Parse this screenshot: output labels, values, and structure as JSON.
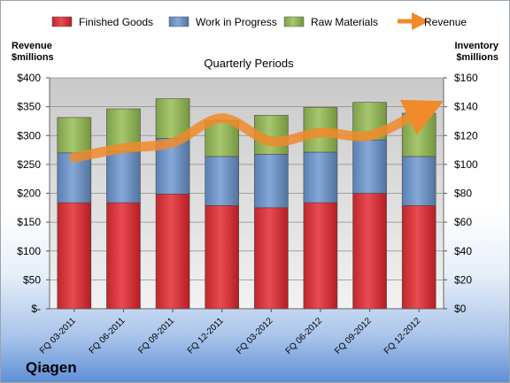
{
  "company": "Qiagen",
  "chart_data": {
    "type": "bar",
    "stacked": true,
    "subtitle": "Quarterly Periods",
    "ylabel_left": [
      "Revenue",
      "$millions"
    ],
    "ylabel_right": [
      "Inventory",
      "$millions"
    ],
    "categories": [
      "FQ 03-2011",
      "FQ 06-2011",
      "FQ 09-2011",
      "FQ 12-2011",
      "FQ 03-2012",
      "FQ 06-2012",
      "FQ 09-2012",
      "FQ 12-2012"
    ],
    "series": [
      {
        "name": "Finished Goods",
        "axis": "right",
        "color": "#d9363e",
        "values": [
          73.5,
          73.5,
          79.5,
          71.5,
          70,
          73.5,
          80,
          71.5
        ]
      },
      {
        "name": "Work in Progress",
        "axis": "right",
        "color": "#6d93c8",
        "values": [
          34.5,
          35.5,
          38.5,
          34,
          37,
          35,
          37,
          34
        ]
      },
      {
        "name": "Raw Materials",
        "axis": "right",
        "color": "#93b65b",
        "values": [
          24.5,
          29.5,
          27.5,
          25,
          27,
          31,
          26,
          30
        ]
      },
      {
        "name": "Revenue",
        "axis": "left",
        "type": "line",
        "color": "#f08a2a",
        "values": [
          262,
          278,
          288,
          330,
          290,
          305,
          300,
          340
        ]
      }
    ],
    "y_left": {
      "min": 0,
      "max": 400,
      "step": 50,
      "ticks": [
        "$-",
        "$50",
        "$100",
        "$150",
        "$200",
        "$250",
        "$300",
        "$350",
        "$400"
      ]
    },
    "y_right": {
      "min": 0,
      "max": 160,
      "step": 20,
      "ticks": [
        "$0",
        "$20",
        "$40",
        "$60",
        "$80",
        "$100",
        "$120",
        "$140",
        "$160"
      ]
    },
    "grid": true,
    "legend_position": "top"
  }
}
